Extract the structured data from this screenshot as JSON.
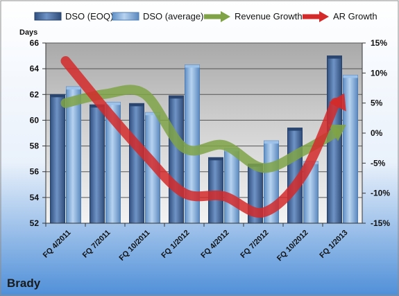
{
  "company": "Brady",
  "chart_data": {
    "type": "bar",
    "title": "",
    "ylabel": "Days",
    "categories": [
      "FQ 4/2011",
      "FQ 7/2011",
      "FQ 10/2011",
      "FQ 1/2012",
      "FQ 4/2012",
      "FQ 7/2012",
      "FQ 10/2012",
      "FQ 1/2013"
    ],
    "ylim": [
      52,
      66
    ],
    "yticks": [
      52,
      54,
      56,
      58,
      60,
      62,
      64,
      66
    ],
    "y2lim": [
      -15,
      15
    ],
    "y2ticks": [
      "15%",
      "10%",
      "5%",
      "0%",
      "-5%",
      "-10%",
      "-15%"
    ],
    "y2tick_values": [
      15,
      10,
      5,
      0,
      -5,
      -10,
      -15
    ],
    "series": [
      {
        "name": "DSO (EOQ)",
        "kind": "bar",
        "axis": "left",
        "color": "#4a6fa5",
        "values": [
          62.0,
          61.2,
          61.3,
          61.9,
          57.1,
          56.6,
          59.4,
          65.0
        ]
      },
      {
        "name": "DSO (average)",
        "kind": "bar",
        "axis": "left",
        "color": "#8ab4e0",
        "values": [
          62.6,
          61.4,
          60.6,
          64.3,
          57.8,
          58.4,
          56.8,
          63.5
        ]
      },
      {
        "name": "Revenue Growth",
        "kind": "line",
        "axis": "right",
        "color": "#7fa346",
        "values": [
          5.0,
          6.5,
          6.5,
          -2.5,
          -2.0,
          -5.8,
          -3.0,
          1.0
        ]
      },
      {
        "name": "AR Growth",
        "kind": "line",
        "axis": "right",
        "color": "#d42a2a",
        "values": [
          12.0,
          4.0,
          -3.5,
          -10.0,
          -10.5,
          -13.2,
          -7.0,
          6.0
        ]
      }
    ],
    "legend_position": "top",
    "grid": true
  }
}
